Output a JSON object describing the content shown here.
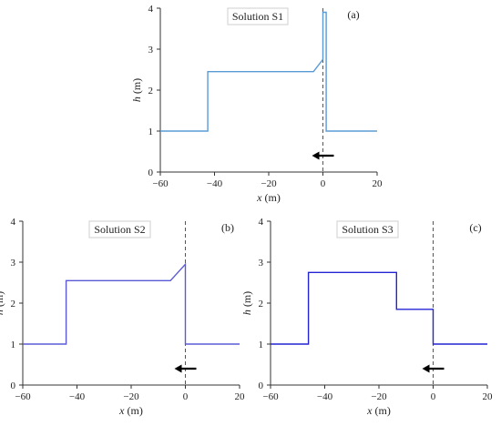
{
  "chart_data": [
    {
      "type": "line",
      "panel_label": "(a)",
      "title": "Solution S1",
      "xlabel_var": "x",
      "xlabel_unit": " (m)",
      "ylabel_var": "h",
      "ylabel_unit": " (m)",
      "xlim": [
        -60,
        20
      ],
      "ylim": [
        0,
        4
      ],
      "xticks": [
        -60,
        -40,
        -20,
        0,
        20
      ],
      "yticks": [
        0,
        1,
        2,
        3,
        4
      ],
      "vline_x": 0,
      "arrow_direction": "left",
      "line_color": "#5b9bd5",
      "series": [
        {
          "x": [
            -60,
            -42.5,
            -42.5,
            -3.5,
            0,
            0,
            1.2,
            1.2,
            20
          ],
          "y": [
            1,
            1,
            2.45,
            2.45,
            2.75,
            3.9,
            3.9,
            1,
            1
          ]
        }
      ]
    },
    {
      "type": "line",
      "panel_label": "(b)",
      "title": "Solution S2",
      "xlabel_var": "x",
      "xlabel_unit": " (m)",
      "ylabel_var": "h",
      "ylabel_unit": " (m)",
      "xlim": [
        -60,
        20
      ],
      "ylim": [
        0,
        4
      ],
      "xticks": [
        -60,
        -40,
        -20,
        0,
        20
      ],
      "yticks": [
        0,
        1,
        2,
        3,
        4
      ],
      "vline_x": 0,
      "arrow_direction": "left",
      "line_color": "#5a5ad6",
      "series": [
        {
          "x": [
            -60,
            -44,
            -44,
            -5.5,
            0,
            0,
            20
          ],
          "y": [
            1,
            1,
            2.55,
            2.55,
            2.95,
            1,
            1
          ]
        }
      ]
    },
    {
      "type": "line",
      "panel_label": "(c)",
      "title": "Solution S3",
      "xlabel_var": "x",
      "xlabel_unit": " (m)",
      "ylabel_var": "h",
      "ylabel_unit": " (m)",
      "xlim": [
        -60,
        20
      ],
      "ylim": [
        0,
        4
      ],
      "xticks": [
        -60,
        -40,
        -20,
        0,
        20
      ],
      "yticks": [
        0,
        1,
        2,
        3,
        4
      ],
      "vline_x": 0,
      "arrow_direction": "left",
      "line_color": "#2424d4",
      "series": [
        {
          "x": [
            -60,
            -46,
            -46,
            -13.5,
            -13.5,
            0,
            0,
            20
          ],
          "y": [
            1,
            1,
            2.75,
            2.75,
            1.85,
            1.85,
            1,
            1
          ]
        }
      ]
    }
  ]
}
